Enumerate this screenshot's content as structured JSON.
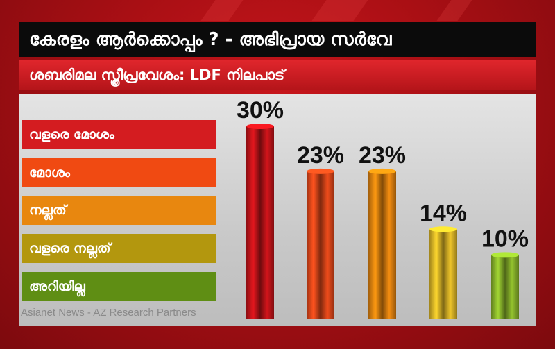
{
  "title": "കേരളം ആർക്കൊപ്പം ? - അഭിപ്രായ സർവേ",
  "subtitle": "ശബരിമല സ്ത്രീപ്രവേശം: LDF നിലപാട്",
  "source": "Asianet News - AZ Research Partners",
  "chart_data": {
    "type": "bar",
    "categories": [
      "വളരെ മോശം",
      "മോശം",
      "നല്ലത്",
      "വളരെ നല്ലത്",
      "അറിയില്ല"
    ],
    "values": [
      30,
      23,
      23,
      14,
      10
    ],
    "value_labels": [
      "30%",
      "23%",
      "23%",
      "14%",
      "10%"
    ],
    "colors": [
      "#d41c20",
      "#f04a12",
      "#e8870f",
      "#b3970e",
      "#5f8e14"
    ],
    "bar_colors": [
      "#c8141a",
      "#e4481a",
      "#e8860f",
      "#e4bc28",
      "#8dba2c"
    ],
    "ylim": [
      0,
      30
    ]
  }
}
